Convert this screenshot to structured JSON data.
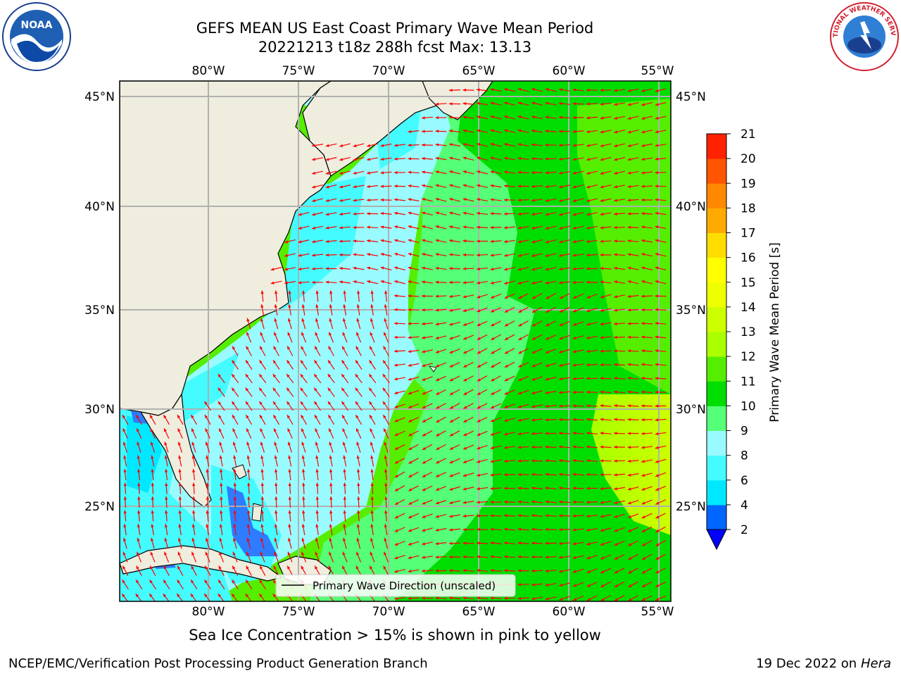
{
  "title_line1": "GEFS MEAN US East Coast Primary Wave Mean Period",
  "title_line2": "20221213 t18z 288h fcst   Max: 13.13",
  "caption": "Sea Ice Concentration > 15% is shown in pink to yellow",
  "footer_org": "NCEP/EMC/Verification Post Processing Product Generation Branch",
  "footer_date": "19 Dec 2022 on",
  "footer_host": "Hera",
  "legend_label": "Primary Wave Direction (unscaled)",
  "colorbar": {
    "label": "Primary Wave Mean Period [s]",
    "ticks": [
      "2",
      "4",
      "6",
      "8",
      "9",
      "10",
      "11",
      "12",
      "13",
      "14",
      "15",
      "16",
      "17",
      "18",
      "19",
      "20",
      "21"
    ],
    "colors": [
      "#0066ff",
      "#00e8ff",
      "#44fbff",
      "#99fbff",
      "#55ff77",
      "#00dd00",
      "#55ee00",
      "#aaff00",
      "#ccff00",
      "#eeff00",
      "#ffff00",
      "#ffdd00",
      "#ffaa00",
      "#ff8800",
      "#ff5500",
      "#ff2200"
    ],
    "under_color": "#0000ff"
  },
  "map": {
    "lon_labels": [
      "80°W",
      "75°W",
      "70°W",
      "65°W",
      "60°W",
      "55°W"
    ],
    "lat_labels": [
      "45°N",
      "40°N",
      "35°N",
      "30°N",
      "25°N"
    ],
    "land_color": "#efedde",
    "arrow_color": "#ff0000"
  },
  "logos": {
    "noaa": "NOAA",
    "nws": "NATIONAL WEATHER SERVICE"
  }
}
